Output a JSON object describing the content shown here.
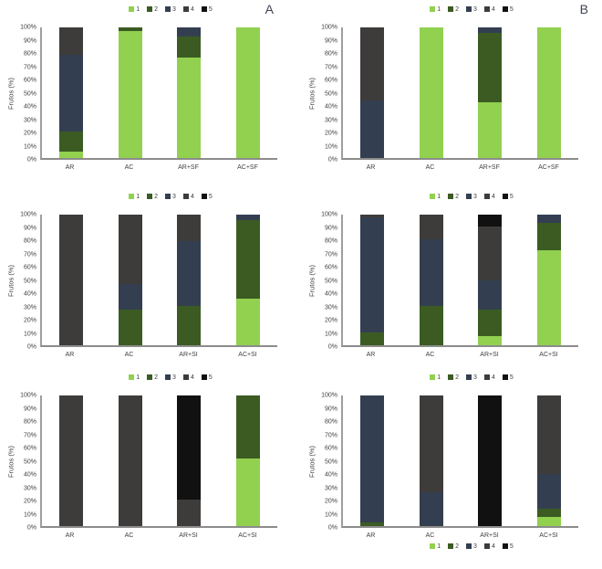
{
  "figure": {
    "panel_a_label": "A",
    "panel_b_label": "B"
  },
  "axis": {
    "ylabel": "Frutos (%)",
    "ymin": 0,
    "ymax": 100,
    "yticks": [
      "0%",
      "10%",
      "20%",
      "30%",
      "40%",
      "50%",
      "60%",
      "70%",
      "80%",
      "90%",
      "100%"
    ]
  },
  "legend": {
    "items": [
      {
        "label": "1",
        "color": "#92d050"
      },
      {
        "label": "2",
        "color": "#3b5b23"
      },
      {
        "label": "3",
        "color": "#333f50"
      },
      {
        "label": "4",
        "color": "#3e3b3b"
      },
      {
        "label": "5",
        "color": "#111111"
      }
    ]
  },
  "chart_data": [
    {
      "type": "bar",
      "stacked": true,
      "units": "percent",
      "panel": "A",
      "position": "top-left",
      "legend_position": "top",
      "grid": false,
      "categories": [
        "AR",
        "AC",
        "AR+SF",
        "AC+SF"
      ],
      "series": [
        {
          "name": "1",
          "values": [
            5,
            97,
            77,
            100
          ]
        },
        {
          "name": "2",
          "values": [
            15,
            3,
            16,
            0
          ]
        },
        {
          "name": "3",
          "values": [
            59,
            0,
            7,
            0
          ]
        },
        {
          "name": "4",
          "values": [
            21,
            0,
            0,
            0
          ]
        },
        {
          "name": "5",
          "values": [
            0,
            0,
            0,
            0
          ]
        }
      ]
    },
    {
      "type": "bar",
      "stacked": true,
      "units": "percent",
      "panel": "B",
      "position": "top-right",
      "legend_position": "top",
      "grid": false,
      "categories": [
        "AR",
        "AC",
        "AR+SF",
        "AC+SF"
      ],
      "series": [
        {
          "name": "1",
          "values": [
            0,
            100,
            43,
            100
          ]
        },
        {
          "name": "2",
          "values": [
            0,
            0,
            53,
            0
          ]
        },
        {
          "name": "3",
          "values": [
            44,
            0,
            4,
            0
          ]
        },
        {
          "name": "4",
          "values": [
            56,
            0,
            0,
            0
          ]
        },
        {
          "name": "5",
          "values": [
            0,
            0,
            0,
            0
          ]
        }
      ]
    },
    {
      "type": "bar",
      "stacked": true,
      "units": "percent",
      "panel": "A",
      "position": "middle-left",
      "legend_position": "top",
      "grid": false,
      "categories": [
        "AR",
        "AC",
        "AR+SI",
        "AC+SI"
      ],
      "series": [
        {
          "name": "1",
          "values": [
            0,
            0,
            0,
            36
          ]
        },
        {
          "name": "2",
          "values": [
            0,
            27,
            30,
            60
          ]
        },
        {
          "name": "3",
          "values": [
            0,
            20,
            50,
            4
          ]
        },
        {
          "name": "4",
          "values": [
            100,
            53,
            20,
            0
          ]
        },
        {
          "name": "5",
          "values": [
            0,
            0,
            0,
            0
          ]
        }
      ]
    },
    {
      "type": "bar",
      "stacked": true,
      "units": "percent",
      "panel": "B",
      "position": "middle-right",
      "legend_position": "top",
      "grid": false,
      "categories": [
        "AR",
        "AC",
        "AR+SI",
        "AC+SI"
      ],
      "series": [
        {
          "name": "1",
          "values": [
            0,
            0,
            7,
            73
          ]
        },
        {
          "name": "2",
          "values": [
            10,
            30,
            20,
            21
          ]
        },
        {
          "name": "3",
          "values": [
            88,
            51,
            23,
            6
          ]
        },
        {
          "name": "4",
          "values": [
            2,
            19,
            41,
            0
          ]
        },
        {
          "name": "5",
          "values": [
            0,
            0,
            9,
            0
          ]
        }
      ]
    },
    {
      "type": "bar",
      "stacked": true,
      "units": "percent",
      "panel": "A",
      "position": "bottom-left",
      "legend_position": "top",
      "grid": false,
      "categories": [
        "AR",
        "AC",
        "AR+SI",
        "AC+SI"
      ],
      "series": [
        {
          "name": "1",
          "values": [
            0,
            0,
            0,
            52
          ]
        },
        {
          "name": "2",
          "values": [
            0,
            0,
            0,
            48
          ]
        },
        {
          "name": "3",
          "values": [
            0,
            0,
            0,
            0
          ]
        },
        {
          "name": "4",
          "values": [
            100,
            100,
            20,
            0
          ]
        },
        {
          "name": "5",
          "values": [
            0,
            0,
            80,
            0
          ]
        }
      ]
    },
    {
      "type": "bar",
      "stacked": true,
      "units": "percent",
      "panel": "B",
      "position": "bottom-right",
      "legend_position": "top-and-bottom",
      "grid": false,
      "categories": [
        "AR",
        "AC",
        "AR+SI",
        "AC+SI"
      ],
      "series": [
        {
          "name": "1",
          "values": [
            0,
            0,
            0,
            7
          ]
        },
        {
          "name": "2",
          "values": [
            3,
            0,
            0,
            6
          ]
        },
        {
          "name": "3",
          "values": [
            97,
            26,
            0,
            27
          ]
        },
        {
          "name": "4",
          "values": [
            0,
            74,
            0,
            60
          ]
        },
        {
          "name": "5",
          "values": [
            0,
            0,
            100,
            0
          ]
        }
      ]
    }
  ]
}
